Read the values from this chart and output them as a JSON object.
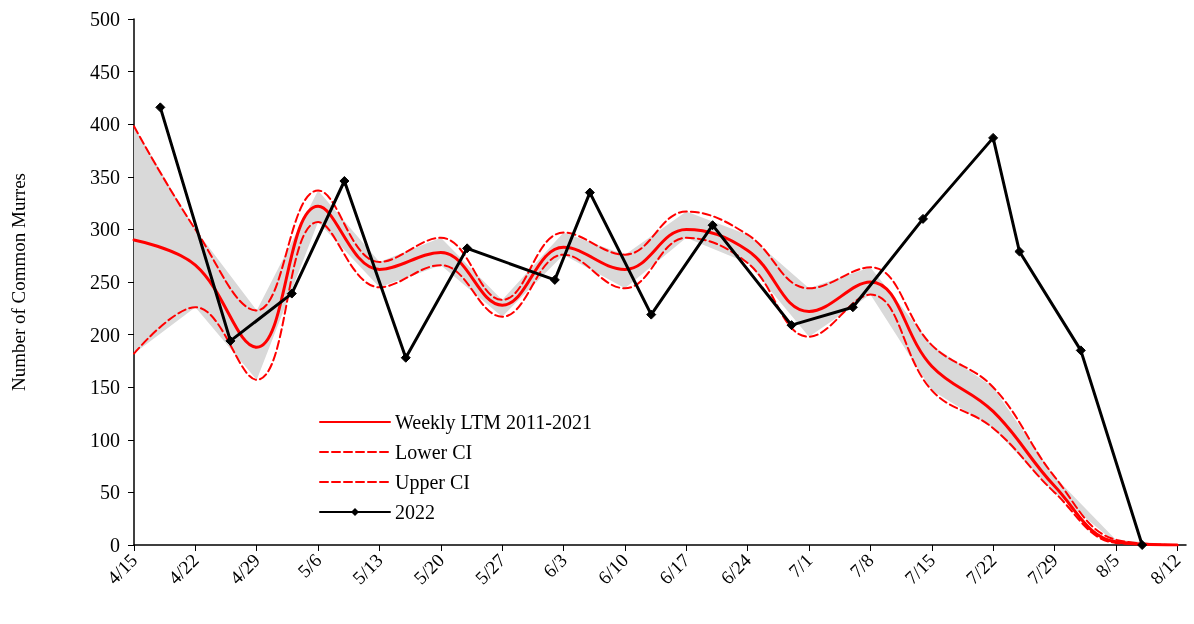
{
  "chart_data": {
    "type": "line",
    "ylabel": "Number of Common Murres",
    "xlim": [
      "--04-15",
      "--08-13"
    ],
    "xticks": [
      {
        "value": "--04-15",
        "label": "4/15"
      },
      {
        "value": "--04-22",
        "label": "4/22"
      },
      {
        "value": "--04-29",
        "label": "4/29"
      },
      {
        "value": "--05-06",
        "label": "5/6"
      },
      {
        "value": "--05-13",
        "label": "5/13"
      },
      {
        "value": "--05-20",
        "label": "5/20"
      },
      {
        "value": "--05-27",
        "label": "5/27"
      },
      {
        "value": "--06-03",
        "label": "6/3"
      },
      {
        "value": "--06-10",
        "label": "6/10"
      },
      {
        "value": "--06-17",
        "label": "6/17"
      },
      {
        "value": "--06-24",
        "label": "6/24"
      },
      {
        "value": "--07-01",
        "label": "7/1"
      },
      {
        "value": "--07-08",
        "label": "7/8"
      },
      {
        "value": "--07-15",
        "label": "7/15"
      },
      {
        "value": "--07-22",
        "label": "7/22"
      },
      {
        "value": "--07-29",
        "label": "7/29"
      },
      {
        "value": "--08-05",
        "label": "8/5"
      },
      {
        "value": "--08-12",
        "label": "8/12"
      }
    ],
    "ylim": [
      0,
      500
    ],
    "yticks": [
      0,
      50,
      100,
      150,
      200,
      250,
      300,
      350,
      400,
      450,
      500
    ],
    "grid": false,
    "legend": "bottom left",
    "series": [
      {
        "name": "Weekly LTM 2011-2021",
        "color": "#ff0000",
        "line_style": "solid",
        "marker": "none",
        "x": [
          "--04-15",
          "--04-22",
          "--04-29",
          "--05-06",
          "--05-13",
          "--05-20",
          "--05-27",
          "--06-03",
          "--06-10",
          "--06-17",
          "--06-24",
          "--07-01",
          "--07-08",
          "--07-15",
          "--07-22",
          "--07-29",
          "--08-05",
          "--08-12"
        ],
        "values": [
          290,
          266,
          188,
          322,
          262,
          278,
          228,
          283,
          262,
          300,
          280,
          222,
          250,
          170,
          127,
          56,
          3,
          0
        ],
        "lower": [
          182,
          226,
          157,
          307,
          245,
          266,
          217,
          276,
          244,
          292,
          268,
          198,
          238,
          147,
          111,
          50,
          2,
          0
        ],
        "upper": [
          398,
          300,
          223,
          337,
          269,
          292,
          233,
          297,
          276,
          317,
          295,
          244,
          264,
          190,
          150,
          65,
          5,
          0
        ]
      },
      {
        "name": "Lower CI",
        "color": "#ff0000",
        "line_style": "dashed",
        "marker": "none",
        "x": [
          "--04-15",
          "--04-22",
          "--04-29",
          "--05-06",
          "--05-13",
          "--05-20",
          "--05-27",
          "--06-03",
          "--06-10",
          "--06-17",
          "--06-24",
          "--07-01",
          "--07-08",
          "--07-15",
          "--07-22",
          "--07-29",
          "--08-05",
          "--08-12"
        ],
        "values": [
          182,
          226,
          157,
          307,
          245,
          266,
          217,
          276,
          244,
          292,
          268,
          198,
          238,
          147,
          111,
          50,
          2,
          0
        ]
      },
      {
        "name": "Upper CI",
        "color": "#ff0000",
        "line_style": "dashed",
        "marker": "none",
        "x": [
          "--04-15",
          "--04-22",
          "--04-29",
          "--05-06",
          "--05-13",
          "--05-20",
          "--05-27",
          "--06-03",
          "--06-10",
          "--06-17",
          "--06-24",
          "--07-01",
          "--07-08",
          "--07-15",
          "--07-22",
          "--07-29",
          "--08-05",
          "--08-12"
        ],
        "values": [
          398,
          300,
          223,
          337,
          269,
          292,
          233,
          297,
          276,
          317,
          295,
          244,
          264,
          190,
          150,
          65,
          5,
          0
        ]
      },
      {
        "name": "2022",
        "color": "#000000",
        "line_style": "solid",
        "marker": "diamond",
        "x": [
          "--04-18",
          "--04-26",
          "--05-03",
          "--05-09",
          "--05-16",
          "--05-23",
          "--06-02",
          "--06-06",
          "--06-13",
          "--06-20",
          "--06-29",
          "--07-06",
          "--07-14",
          "--07-22",
          "--07-25",
          "--08-01",
          "--08-08"
        ],
        "values": [
          416,
          194,
          239,
          346,
          178,
          282,
          252,
          335,
          219,
          304,
          209,
          226,
          310,
          387,
          279,
          185,
          0
        ]
      }
    ]
  }
}
